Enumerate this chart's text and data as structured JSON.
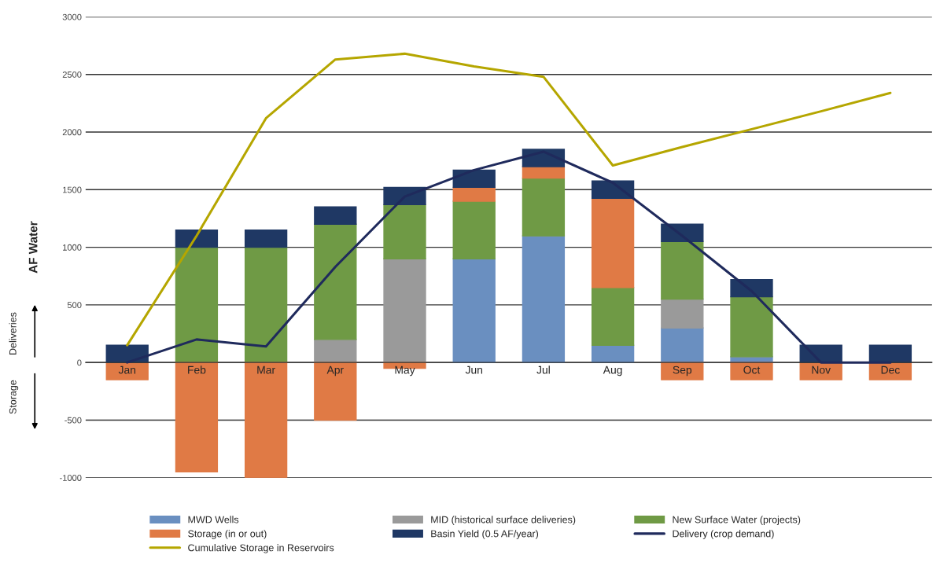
{
  "chart_data": {
    "type": "bar",
    "stacked": true,
    "ylabel": "AF Water",
    "categories": [
      "Jan",
      "Feb",
      "Mar",
      "Apr",
      "May",
      "Jun",
      "Jul",
      "Aug",
      "Sep",
      "Oct",
      "Nov",
      "Dec"
    ],
    "series": [
      {
        "name": "MWD Wells",
        "color": "#6a8fc0",
        "values": [
          0,
          0,
          0,
          0,
          0,
          900,
          1100,
          150,
          300,
          50,
          0,
          0
        ]
      },
      {
        "name": "MID (historical surface deliveries)",
        "color": "#9a9a9a",
        "values": [
          0,
          0,
          0,
          200,
          900,
          0,
          0,
          0,
          250,
          0,
          0,
          0
        ]
      },
      {
        "name": "New Surface Water (projects)",
        "color": "#6f9a45",
        "values": [
          0,
          1000,
          1000,
          1000,
          470,
          500,
          500,
          500,
          500,
          520,
          0,
          0
        ]
      },
      {
        "name": "Storage (in or out)",
        "color": "#e07a45",
        "values": [
          -150,
          -950,
          -1000,
          -500,
          -50,
          120,
          100,
          775,
          -150,
          -150,
          -150,
          -150
        ]
      },
      {
        "name": "Basin Yield (0.5 AF/year)",
        "color": "#1f3864",
        "values": [
          150,
          150,
          150,
          150,
          150,
          150,
          150,
          150,
          150,
          150,
          150,
          150
        ]
      },
      {
        "name": "Delivery (crop demand)",
        "type": "line",
        "color": "#1f2a5c",
        "values": [
          0,
          200,
          140,
          830,
          1440,
          1670,
          1830,
          1560,
          1100,
          620,
          0,
          0
        ]
      },
      {
        "name": "Cumulative Storage in Reservoirs",
        "type": "line",
        "color": "#b5a600",
        "values": [
          150,
          1100,
          2120,
          2630,
          2680,
          2570,
          2480,
          1710,
          1870,
          2025,
          2180,
          2340
        ]
      }
    ],
    "ylim": [
      -1000,
      3000
    ],
    "yticks": [
      -1000,
      -500,
      0,
      500,
      1000,
      1500,
      2000,
      2500,
      3000
    ],
    "grid": "y",
    "legend": "bottom",
    "annotations": [
      "Deliveries",
      "Storage"
    ]
  }
}
